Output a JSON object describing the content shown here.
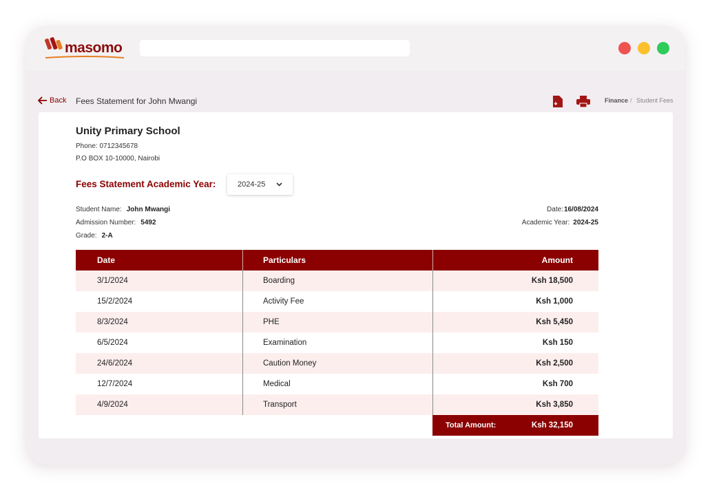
{
  "app": {
    "logo": "masomo"
  },
  "header": {
    "back": "Back",
    "title": "Fees Statement for John Mwangi",
    "breadcrumb": {
      "parent": "Finance",
      "separator": "/",
      "current": "Student Fees"
    }
  },
  "school": {
    "name": "Unity Primary School",
    "phone": "Phone: 0712345678",
    "address": "P.O BOX 10-10000, Nairobi"
  },
  "year_selector": {
    "label": "Fees Statement Academic Year:",
    "value": "2024-25"
  },
  "student": {
    "left": [
      {
        "label": "Student Name:",
        "value": "John Mwangi"
      },
      {
        "label": "Admission Number:",
        "value": "5492"
      },
      {
        "label": "Grade:",
        "value": "2-A"
      }
    ],
    "right": [
      {
        "label": "Date:",
        "value": "16/08/2024"
      },
      {
        "label": "Academic Year:",
        "value": "2024-25"
      }
    ]
  },
  "table": {
    "columns": [
      "Date",
      "Particulars",
      "Amount"
    ],
    "rows": [
      [
        "3/1/2024",
        "Boarding",
        "Ksh 18,500"
      ],
      [
        "15/2/2024",
        "Activity Fee",
        "Ksh 1,000"
      ],
      [
        "8/3/2024",
        "PHE",
        "Ksh 5,450"
      ],
      [
        "6/5/2024",
        "Examination",
        "Ksh 150"
      ],
      [
        "24/6/2024",
        "Caution Money",
        "Ksh 2,500"
      ],
      [
        "12/7/2024",
        "Medical",
        "Ksh 700"
      ],
      [
        "4/9/2024",
        "Transport",
        "Ksh 3,850"
      ]
    ],
    "total": {
      "label": "Total Amount:",
      "value": "Ksh 32,150"
    }
  }
}
